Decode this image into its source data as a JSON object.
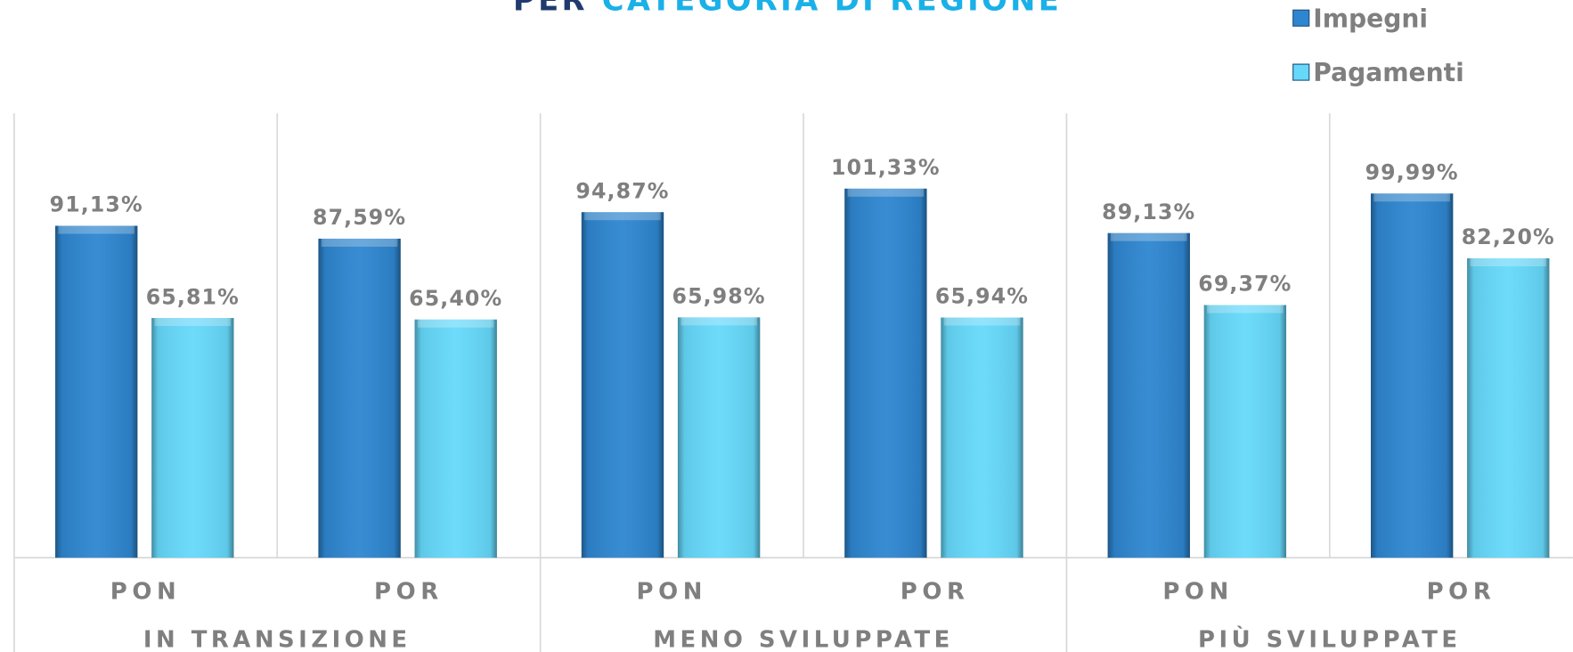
{
  "chart_data": {
    "type": "bar",
    "title_parts": [
      "PER",
      "CATEGORIA DI REGIONE"
    ],
    "title_colors": [
      "#1f3a6e",
      "#1ab0e8"
    ],
    "categories": [
      "PON",
      "POR",
      "PON",
      "POR",
      "PON",
      "POR"
    ],
    "groups": [
      "IN TRANSIZIONE",
      "MENO SVILUPPATE",
      "PIÙ SVILUPPATE"
    ],
    "series": [
      {
        "name": "Impegni",
        "color": "#2e86d0",
        "values": [
          91.13,
          87.59,
          94.87,
          101.33,
          89.13,
          99.99
        ],
        "value_labels": [
          "91,13%",
          "87,59%",
          "94,87%",
          "101,33%",
          "89,13%",
          "99,99%"
        ]
      },
      {
        "name": "Pagamenti",
        "color": "#66d9fb",
        "values": [
          65.81,
          65.4,
          65.98,
          65.94,
          69.37,
          82.2
        ],
        "value_labels": [
          "65,81%",
          "65,40%",
          "65,98%",
          "65,94%",
          "69,37%",
          "82,20%"
        ]
      }
    ],
    "ylim": [
      0,
      122
    ],
    "grid": false,
    "legend": "top-right"
  }
}
